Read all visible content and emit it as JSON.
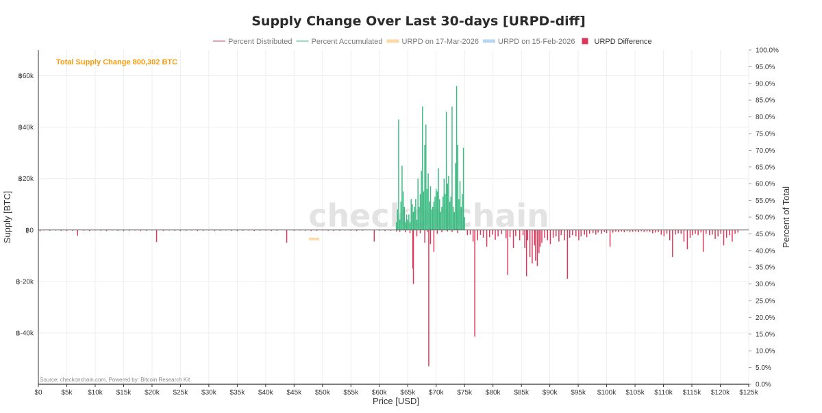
{
  "chart_data": {
    "type": "bar",
    "title": "Supply Change Over Last 30-days [URPD-diff]",
    "xlabel": "Price [USD]",
    "ylabel": "Supply [BTC]",
    "y2label": "Percent of Total",
    "annotation": "Total Supply Change 800,302 BTC",
    "source": "Source: checkonchain.com, Powered by: Bitcoin Research Kit",
    "watermark": "checkonchain",
    "colors": {
      "accumulated": "#3dbb83",
      "distributed": "#d8395b",
      "orange": "#f39c12",
      "axis": "#333333"
    },
    "legend": [
      {
        "name": "Percent Distributed",
        "color": "#e8a0b4",
        "kind": "line"
      },
      {
        "name": "Percent Accumulated",
        "color": "#99dcc4",
        "kind": "line"
      },
      {
        "name": "URPD on 17-Mar-2026",
        "color": "#fbd9a8",
        "kind": "bar"
      },
      {
        "name": "URPD on 15-Feb-2026",
        "color": "#b9d6f2",
        "kind": "bar"
      },
      {
        "name": "URPD Difference",
        "color": "#d8395b",
        "kind": "square"
      }
    ],
    "xlim": [
      0,
      125000
    ],
    "ylim": [
      -60000,
      70000
    ],
    "y2lim": [
      0,
      100
    ],
    "xticks": [
      "$0",
      "$5k",
      "$10k",
      "$15k",
      "$20k",
      "$25k",
      "$30k",
      "$35k",
      "$40k",
      "$45k",
      "$50k",
      "$55k",
      "$60k",
      "$65k",
      "$70k",
      "$75k",
      "$80k",
      "$85k",
      "$90k",
      "$95k",
      "$100k",
      "$105k",
      "$110k",
      "$115k",
      "$120k",
      "$125k"
    ],
    "yticks": [
      "฿60k",
      "฿40k",
      "฿20k",
      "฿0",
      "฿-20k",
      "฿-40k"
    ],
    "yticks_values": [
      60000,
      40000,
      20000,
      0,
      -20000,
      -40000
    ],
    "y2ticks": [
      "100.0%",
      "95.0%",
      "90.0%",
      "85.0%",
      "80.0%",
      "75.0%",
      "70.0%",
      "65.0%",
      "60.0%",
      "55.0%",
      "50.0%",
      "45.0%",
      "40.0%",
      "35.0%",
      "30.0%",
      "25.0%",
      "20.0%",
      "15.0%",
      "10.0%",
      "5.0%",
      "0.0%"
    ],
    "accumulated": [
      [
        63000,
        3000
      ],
      [
        63200,
        8000
      ],
      [
        63400,
        43000
      ],
      [
        63600,
        4000
      ],
      [
        63800,
        11000
      ],
      [
        64000,
        25000
      ],
      [
        64200,
        15000
      ],
      [
        64400,
        9000
      ],
      [
        64600,
        3000
      ],
      [
        64800,
        6000
      ],
      [
        65000,
        4000
      ],
      [
        65200,
        6000
      ],
      [
        65400,
        3000
      ],
      [
        65600,
        12000
      ],
      [
        65800,
        10000
      ],
      [
        66000,
        7000
      ],
      [
        66200,
        9000
      ],
      [
        66400,
        12000
      ],
      [
        66600,
        4000
      ],
      [
        66800,
        20000
      ],
      [
        67000,
        9000
      ],
      [
        67200,
        14000
      ],
      [
        67400,
        23000
      ],
      [
        67600,
        48000
      ],
      [
        67800,
        15000
      ],
      [
        68000,
        33000
      ],
      [
        68200,
        41000
      ],
      [
        68400,
        16000
      ],
      [
        68600,
        22000
      ],
      [
        68800,
        11000
      ],
      [
        69000,
        17000
      ],
      [
        69200,
        8000
      ],
      [
        69400,
        9000
      ],
      [
        69600,
        11000
      ],
      [
        69800,
        13000
      ],
      [
        70000,
        16000
      ],
      [
        70200,
        15000
      ],
      [
        70400,
        24000
      ],
      [
        70600,
        12000
      ],
      [
        70800,
        7000
      ],
      [
        71000,
        9000
      ],
      [
        71200,
        13000
      ],
      [
        71400,
        20000
      ],
      [
        71600,
        14000
      ],
      [
        71800,
        46000
      ],
      [
        72000,
        18000
      ],
      [
        72200,
        21000
      ],
      [
        72400,
        11000
      ],
      [
        72600,
        13000
      ],
      [
        72800,
        48000
      ],
      [
        73000,
        9000
      ],
      [
        73200,
        7000
      ],
      [
        73400,
        26000
      ],
      [
        73600,
        56000
      ],
      [
        73800,
        33000
      ],
      [
        74000,
        12000
      ],
      [
        74200,
        19000
      ],
      [
        74400,
        9000
      ],
      [
        74600,
        14000
      ],
      [
        74800,
        32000
      ],
      [
        75000,
        5000
      ]
    ],
    "distributed": [
      [
        300,
        -500
      ],
      [
        1000,
        -200
      ],
      [
        2000,
        -300
      ],
      [
        3000,
        -200
      ],
      [
        4000,
        -300
      ],
      [
        5000,
        -400
      ],
      [
        6000,
        -300
      ],
      [
        6900,
        -2200
      ],
      [
        8000,
        -300
      ],
      [
        9000,
        -400
      ],
      [
        10000,
        -200
      ],
      [
        11000,
        -300
      ],
      [
        12000,
        -400
      ],
      [
        13000,
        -200
      ],
      [
        14000,
        -300
      ],
      [
        15000,
        -400
      ],
      [
        16000,
        -300
      ],
      [
        17000,
        -200
      ],
      [
        18000,
        -400
      ],
      [
        19000,
        -300
      ],
      [
        20000,
        -200
      ],
      [
        20800,
        -4700
      ],
      [
        22000,
        -300
      ],
      [
        23000,
        -200
      ],
      [
        24000,
        -300
      ],
      [
        25000,
        -400
      ],
      [
        26000,
        -300
      ],
      [
        27000,
        -200
      ],
      [
        28000,
        -400
      ],
      [
        29000,
        -300
      ],
      [
        30000,
        -200
      ],
      [
        31000,
        -400
      ],
      [
        32000,
        -300
      ],
      [
        33000,
        -200
      ],
      [
        34000,
        -300
      ],
      [
        35000,
        -400
      ],
      [
        36000,
        -300
      ],
      [
        37000,
        -200
      ],
      [
        38000,
        -400
      ],
      [
        39000,
        -300
      ],
      [
        40000,
        -200
      ],
      [
        41000,
        -400
      ],
      [
        42000,
        -300
      ],
      [
        43700,
        -5000
      ],
      [
        45000,
        -300
      ],
      [
        46000,
        -200
      ],
      [
        47000,
        -300
      ],
      [
        48000,
        -400
      ],
      [
        49000,
        -300
      ],
      [
        50000,
        -200
      ],
      [
        51000,
        -300
      ],
      [
        52000,
        -400
      ],
      [
        53000,
        -300
      ],
      [
        54000,
        -200
      ],
      [
        55000,
        -300
      ],
      [
        56000,
        -400
      ],
      [
        57000,
        -300
      ],
      [
        59100,
        -4500
      ],
      [
        60000,
        -300
      ],
      [
        61000,
        -400
      ],
      [
        62000,
        -300
      ],
      [
        63000,
        -600
      ],
      [
        63600,
        -700
      ],
      [
        64600,
        -900
      ],
      [
        65400,
        -1200
      ],
      [
        65900,
        -15000
      ],
      [
        66000,
        -21000
      ],
      [
        66600,
        -2500
      ],
      [
        67200,
        -1300
      ],
      [
        68000,
        -5000
      ],
      [
        68500,
        -700
      ],
      [
        68700,
        -53000
      ],
      [
        69000,
        -5500
      ],
      [
        69600,
        -8500
      ],
      [
        70200,
        -1500
      ],
      [
        71000,
        -900
      ],
      [
        72000,
        -600
      ],
      [
        72800,
        -800
      ],
      [
        73800,
        -1200
      ],
      [
        75500,
        -2000
      ],
      [
        76000,
        -1800
      ],
      [
        76500,
        -4500
      ],
      [
        76800,
        -41500
      ],
      [
        77300,
        -4000
      ],
      [
        77800,
        -1900
      ],
      [
        78300,
        -3000
      ],
      [
        78900,
        -6500
      ],
      [
        79400,
        -2800
      ],
      [
        79900,
        -1800
      ],
      [
        80400,
        -3800
      ],
      [
        80900,
        -2500
      ],
      [
        81500,
        -1600
      ],
      [
        82300,
        -3200
      ],
      [
        82600,
        -17500
      ],
      [
        83000,
        -2800
      ],
      [
        83600,
        -7000
      ],
      [
        84000,
        -2400
      ],
      [
        84700,
        -4000
      ],
      [
        85300,
        -2000
      ],
      [
        85600,
        -7000
      ],
      [
        85900,
        -18000
      ],
      [
        86100,
        -4000
      ],
      [
        86500,
        -10500
      ],
      [
        86900,
        -13000
      ],
      [
        87300,
        -6000
      ],
      [
        87500,
        -12000
      ],
      [
        87800,
        -14000
      ],
      [
        88100,
        -9000
      ],
      [
        88300,
        -6500
      ],
      [
        88600,
        -5000
      ],
      [
        89100,
        -3000
      ],
      [
        89600,
        -4000
      ],
      [
        90100,
        -5500
      ],
      [
        90600,
        -3000
      ],
      [
        91100,
        -2500
      ],
      [
        91600,
        -4500
      ],
      [
        92000,
        -2000
      ],
      [
        92600,
        -4000
      ],
      [
        93100,
        -19000
      ],
      [
        93500,
        -3000
      ],
      [
        94000,
        -2000
      ],
      [
        94600,
        -2500
      ],
      [
        95100,
        -4000
      ],
      [
        95500,
        -2500
      ],
      [
        96100,
        -1800
      ],
      [
        96500,
        -2800
      ],
      [
        97000,
        -1500
      ],
      [
        97600,
        -1200
      ],
      [
        98100,
        -1800
      ],
      [
        98500,
        -1000
      ],
      [
        99100,
        -1500
      ],
      [
        99600,
        -800
      ],
      [
        100000,
        -1200
      ],
      [
        100600,
        -6500
      ],
      [
        101100,
        -1000
      ],
      [
        101600,
        -700
      ],
      [
        102100,
        -900
      ],
      [
        102600,
        -600
      ],
      [
        103100,
        -900
      ],
      [
        103600,
        -500
      ],
      [
        104100,
        -800
      ],
      [
        104600,
        -700
      ],
      [
        105100,
        -600
      ],
      [
        105600,
        -900
      ],
      [
        106100,
        -500
      ],
      [
        106600,
        -800
      ],
      [
        107100,
        -600
      ],
      [
        107600,
        -700
      ],
      [
        108100,
        -1300
      ],
      [
        108600,
        -1000
      ],
      [
        109100,
        -800
      ],
      [
        109600,
        -1800
      ],
      [
        110100,
        -2500
      ],
      [
        110600,
        -1500
      ],
      [
        111100,
        -4000
      ],
      [
        111600,
        -10500
      ],
      [
        112100,
        -1800
      ],
      [
        112600,
        -1300
      ],
      [
        113100,
        -1500
      ],
      [
        113600,
        -4500
      ],
      [
        114200,
        -7500
      ],
      [
        114700,
        -3000
      ],
      [
        115100,
        -2000
      ],
      [
        115600,
        -1500
      ],
      [
        116100,
        -2000
      ],
      [
        116600,
        -1000
      ],
      [
        117000,
        -8500
      ],
      [
        117500,
        -1500
      ],
      [
        118100,
        -2000
      ],
      [
        118600,
        -1800
      ],
      [
        119100,
        -3500
      ],
      [
        119600,
        -2500
      ],
      [
        120100,
        -1500
      ],
      [
        120600,
        -6000
      ],
      [
        121100,
        -3000
      ],
      [
        121600,
        -2000
      ],
      [
        122100,
        -4500
      ],
      [
        122600,
        -1500
      ],
      [
        123100,
        -1000
      ]
    ],
    "urpd_current": [
      [
        47600,
        -3500
      ],
      [
        49400,
        -3500
      ]
    ]
  }
}
